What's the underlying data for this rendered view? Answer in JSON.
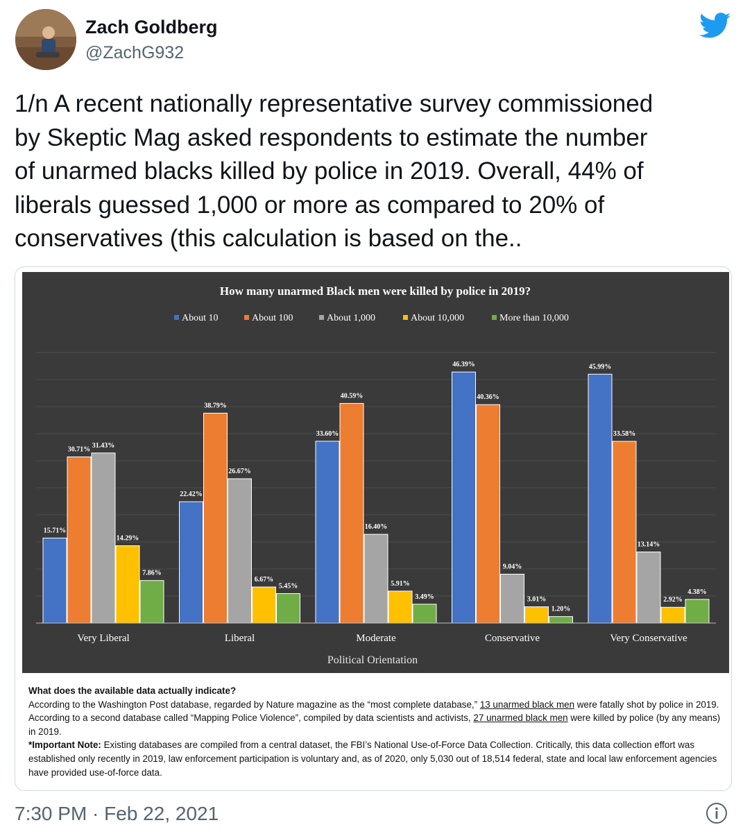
{
  "author": {
    "name": "Zach Goldberg",
    "handle": "@ZachG932"
  },
  "tweet": {
    "lines": [
      "1/n A recent nationally representative survey commissioned",
      "by Skeptic Mag asked respondents to estimate the number",
      "of unarmed blacks killed by police in 2019. Overall, 44% of",
      "liberals guessed 1,000 or more as compared to 20% of",
      "conservatives (this calculation is based on the.."
    ]
  },
  "chart_data": {
    "type": "bar",
    "title": "How many unarmed Black men were killed by police in 2019?",
    "xlabel": "Political Orientation",
    "ylabel": "",
    "ylim": [
      0,
      50
    ],
    "grid": true,
    "legend_position": "top",
    "categories": [
      "Very Liberal",
      "Liberal",
      "Moderate",
      "Conservative",
      "Very Conservative"
    ],
    "series": [
      {
        "name": "About 10",
        "color": "#4472c4",
        "values": [
          15.71,
          22.42,
          33.6,
          46.39,
          45.99
        ],
        "labels": [
          "15.71%",
          "22.42%",
          "33.60%",
          "46.39%",
          "45.99%"
        ]
      },
      {
        "name": "About 100",
        "color": "#ed7d31",
        "values": [
          30.71,
          38.79,
          40.59,
          40.36,
          33.58
        ],
        "labels": [
          "30.71%",
          "38.79%",
          "40.59%",
          "40.36%",
          "33.58%"
        ]
      },
      {
        "name": "About 1,000",
        "color": "#a5a5a5",
        "values": [
          31.43,
          26.67,
          16.4,
          9.04,
          13.14
        ],
        "labels": [
          "31.43%",
          "26.67%",
          "16.40%",
          "9.04%",
          "13.14%"
        ]
      },
      {
        "name": "About 10,000",
        "color": "#ffc000",
        "values": [
          14.29,
          6.67,
          5.91,
          3.01,
          2.92
        ],
        "labels": [
          "14.29%",
          "6.67%",
          "5.91%",
          "3.01%",
          "2.92%"
        ]
      },
      {
        "name": "More than 10,000",
        "color": "#70ad47",
        "values": [
          7.86,
          5.45,
          3.49,
          1.2,
          4.38
        ],
        "labels": [
          "7.86%",
          "5.45%",
          "3.49%",
          "1.20%",
          "4.38%"
        ]
      }
    ]
  },
  "note": {
    "heading": "What does the available data actually indicate?",
    "p1_a": "According to the Washington Post database, regarded by Nature magazine as the “most complete database,” ",
    "p1_link1": "13 unarmed black men",
    "p1_b": " were fatally shot by police in 2019. According to a second database called “Mapping Police Violence”, compiled by data scientists and activists, ",
    "p1_link2": "27 unarmed black men",
    "p1_c": " were killed by police (by any means) in 2019.",
    "p2_label": "*Important Note:",
    "p2_text": " Existing databases are compiled from a central dataset, the FBI’s National Use-of-Force Data Collection. Critically, this data collection effort was established only recently in 2019, law enforcement participation is voluntary and, as of 2020, only 5,030 out of 18,514 federal, state and local law enforcement agencies have provided use-of-force data."
  },
  "meta": {
    "timestamp": "7:30 PM · Feb 22, 2021"
  },
  "icons": {
    "logo": "twitter-bird-icon",
    "info": "info-icon",
    "avatar": "avatar-photo"
  },
  "colors": {
    "twitter_blue": "#1d9bf0",
    "chart_bg": "#3a3a3a"
  }
}
